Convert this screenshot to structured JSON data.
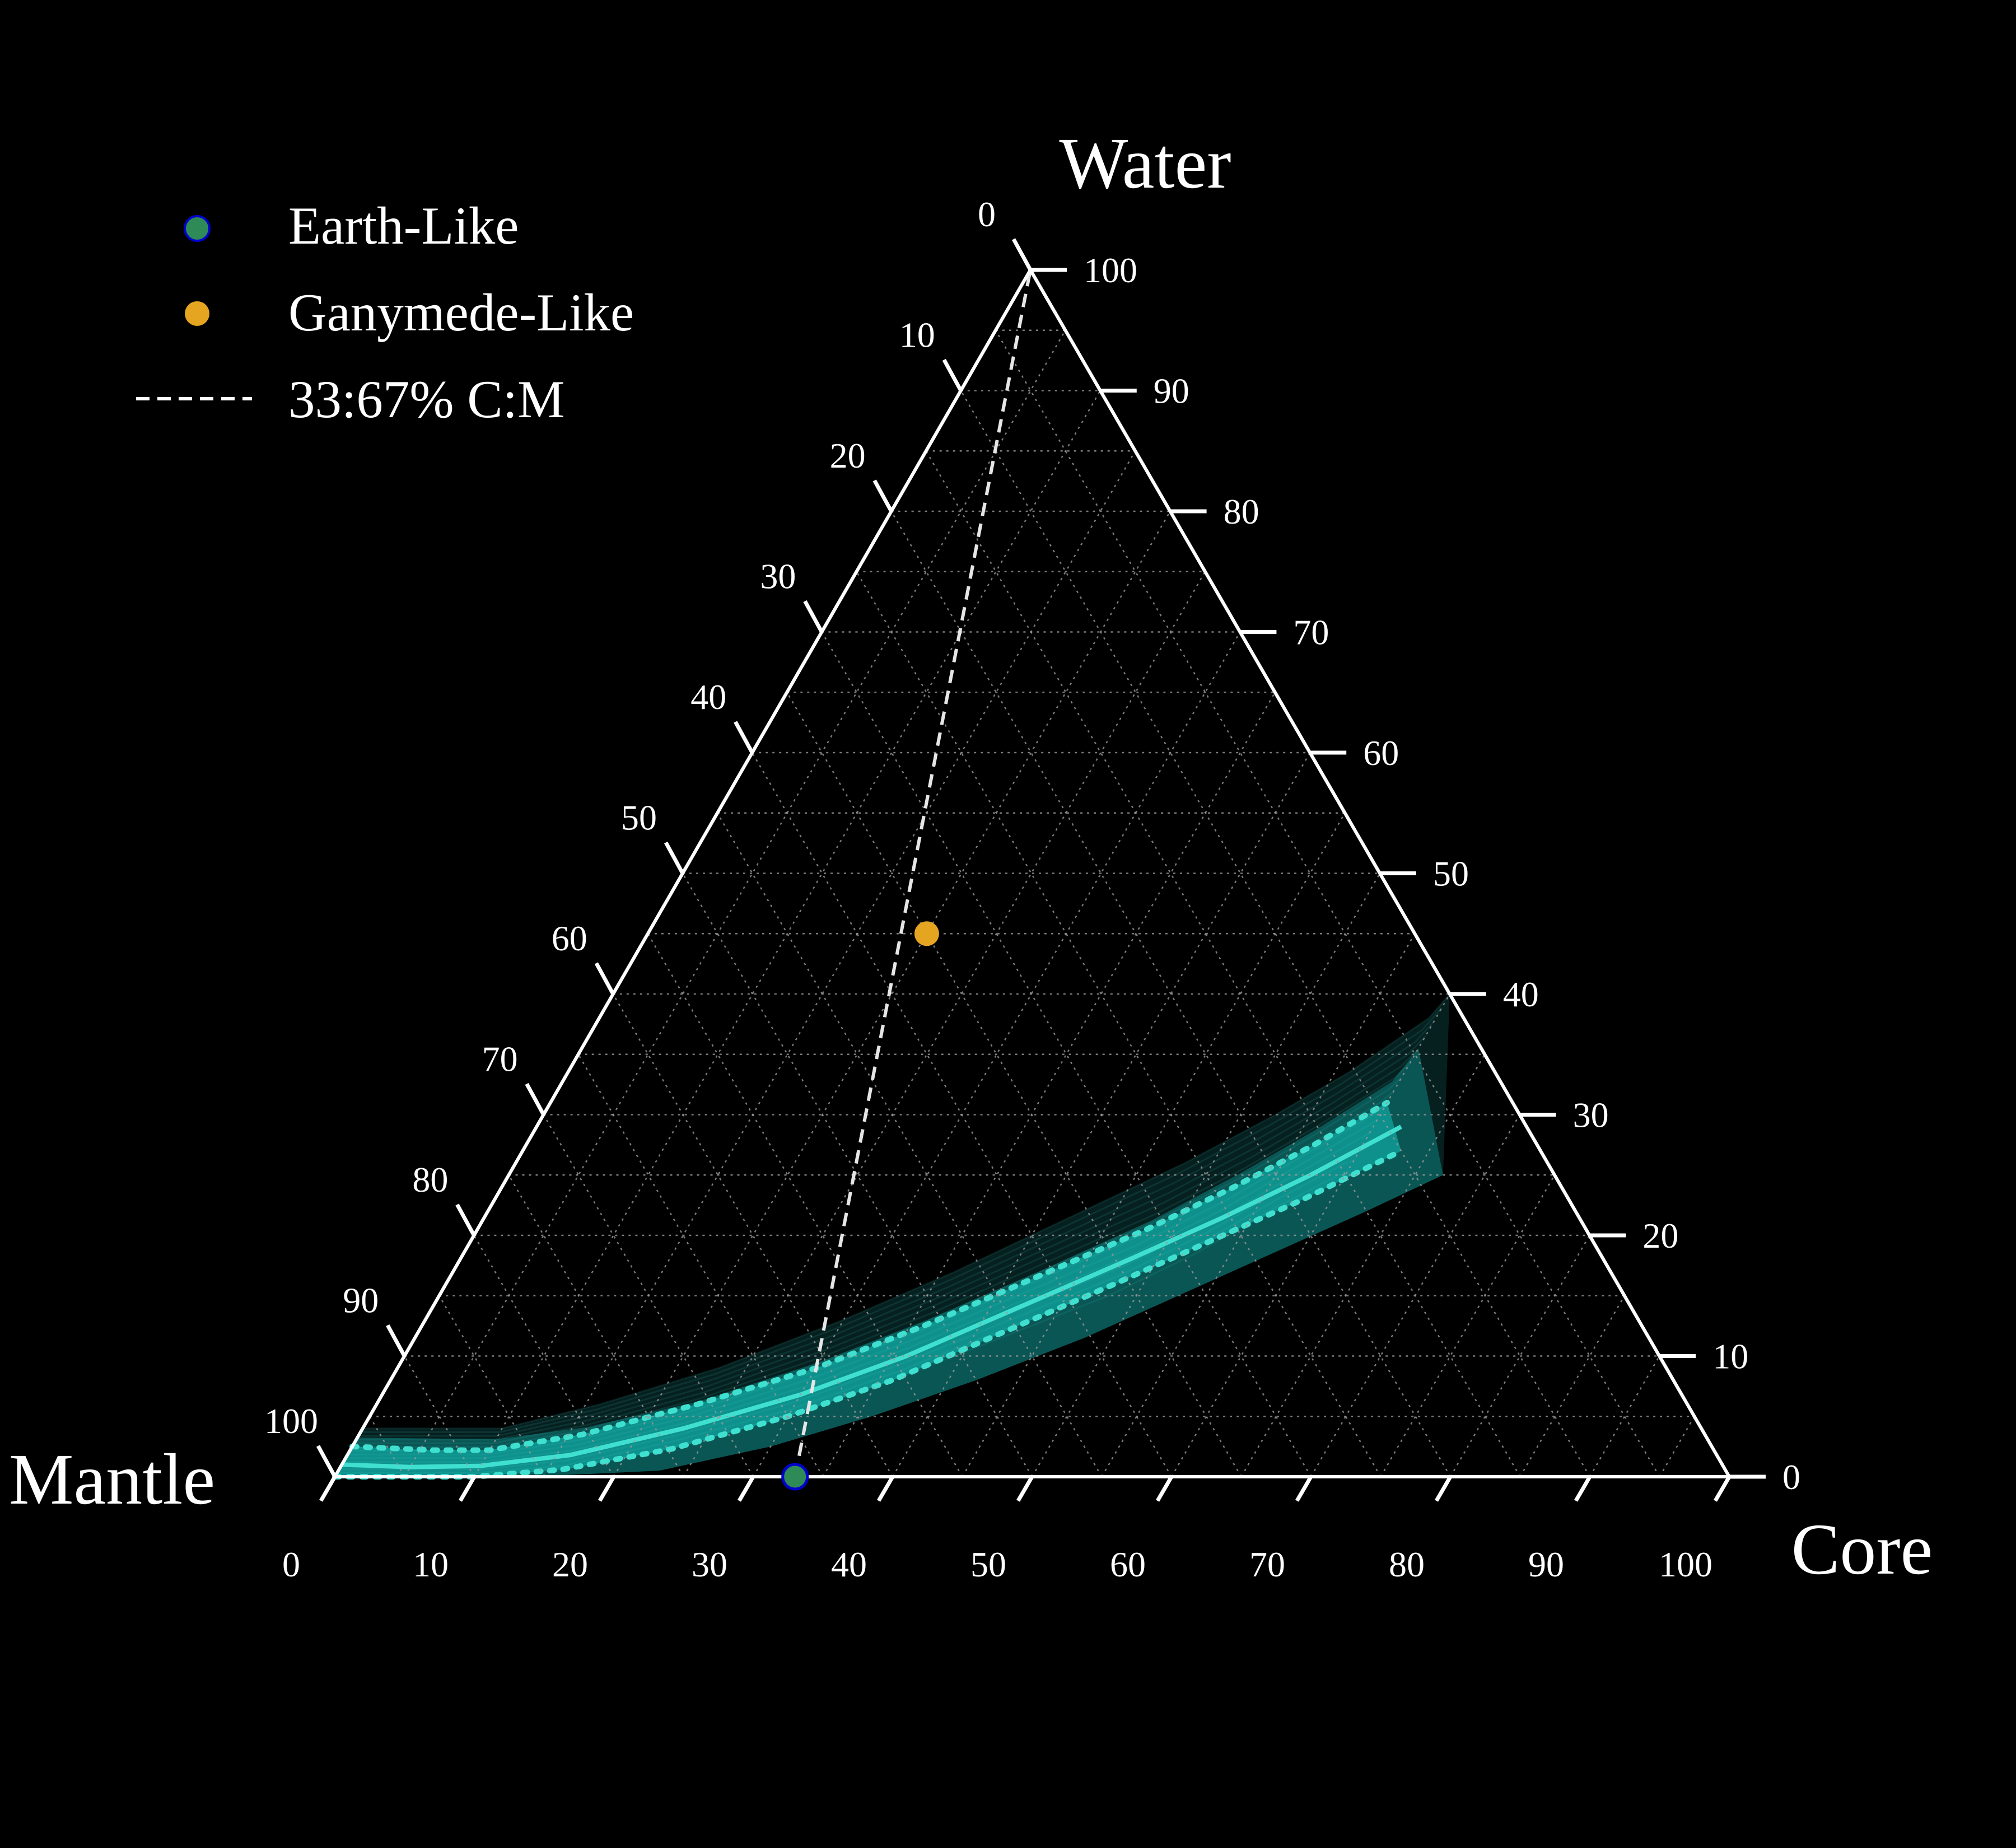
{
  "chart_data": {
    "type": "ternary",
    "axes": {
      "top": "Water",
      "left": "Mantle",
      "right": "Core"
    },
    "ticks": [
      "0",
      "10",
      "20",
      "30",
      "40",
      "50",
      "60",
      "70",
      "80",
      "90",
      "100"
    ],
    "grid": "dotted, every 5%",
    "legend": {
      "position": "top-left",
      "items": [
        {
          "label": "Earth-Like",
          "marker": "circle",
          "color": "#2e8b57",
          "edge": "#0000cd"
        },
        {
          "label": "Ganymede-Like",
          "marker": "circle",
          "color": "#e6a520"
        },
        {
          "label": "33:67% C:M",
          "marker": "dashed-line",
          "color": "#ffffff"
        }
      ]
    },
    "points": [
      {
        "name": "Earth-Like",
        "water": 0,
        "core": 33,
        "mantle": 67
      },
      {
        "name": "Ganymede-Like",
        "water": 45,
        "core": 20,
        "mantle": 35
      }
    ],
    "reference_line": {
      "name": "33:67% C:M",
      "from": {
        "water": 0,
        "core": 33,
        "mantle": 67
      },
      "to": {
        "water": 100,
        "core": 0,
        "mantle": 0
      }
    },
    "band": {
      "color": "#20b2aa",
      "median_color": "#40e0d0",
      "median": [
        {
          "water": 1,
          "core": 0
        },
        {
          "water": 0.8,
          "core": 5
        },
        {
          "water": 0.9,
          "core": 10
        },
        {
          "water": 1.8,
          "core": 16
        },
        {
          "water": 4,
          "core": 23
        },
        {
          "water": 6.8,
          "core": 30
        },
        {
          "water": 10,
          "core": 36
        },
        {
          "water": 14,
          "core": 42
        },
        {
          "water": 18,
          "core": 48
        },
        {
          "water": 21.5,
          "core": 53
        },
        {
          "water": 25,
          "core": 57.5
        },
        {
          "water": 29,
          "core": 62
        }
      ],
      "upper_dotted": [
        {
          "water": 2.5,
          "core": 0
        },
        {
          "water": 2.2,
          "core": 6
        },
        {
          "water": 2.2,
          "core": 10
        },
        {
          "water": 3.5,
          "core": 16
        },
        {
          "water": 6,
          "core": 23
        },
        {
          "water": 9,
          "core": 30
        },
        {
          "water": 12.5,
          "core": 36
        },
        {
          "water": 16.5,
          "core": 42
        },
        {
          "water": 20.5,
          "core": 48
        },
        {
          "water": 24,
          "core": 52.5
        },
        {
          "water": 27.5,
          "core": 56.5
        },
        {
          "water": 31,
          "core": 60
        }
      ],
      "lower_dotted": [
        {
          "water": 0,
          "core": 0
        },
        {
          "water": 0,
          "core": 10
        },
        {
          "water": 0.6,
          "core": 16
        },
        {
          "water": 2.3,
          "core": 23
        },
        {
          "water": 5,
          "core": 30
        },
        {
          "water": 8,
          "core": 36
        },
        {
          "water": 12,
          "core": 42
        },
        {
          "water": 16,
          "core": 48
        },
        {
          "water": 19.5,
          "core": 53
        },
        {
          "water": 23,
          "core": 58
        },
        {
          "water": 27,
          "core": 63
        }
      ],
      "outer_upper": [
        {
          "water": 4,
          "core": 0
        },
        {
          "water": 4,
          "core": 10
        },
        {
          "water": 6,
          "core": 16
        },
        {
          "water": 9,
          "core": 23
        },
        {
          "water": 13,
          "core": 30
        },
        {
          "water": 17,
          "core": 36
        },
        {
          "water": 21.5,
          "core": 42
        },
        {
          "water": 26,
          "core": 48
        },
        {
          "water": 30,
          "core": 52.5
        },
        {
          "water": 33.5,
          "core": 56
        },
        {
          "water": 38,
          "core": 59.5
        },
        {
          "water": 40,
          "core": 60
        }
      ],
      "outer_lower": [
        {
          "water": 0,
          "core": 0
        },
        {
          "water": 0,
          "core": 14
        },
        {
          "water": 0.5,
          "core": 23
        },
        {
          "water": 2.5,
          "core": 30
        },
        {
          "water": 5,
          "core": 36
        },
        {
          "water": 8,
          "core": 42
        },
        {
          "water": 11.5,
          "core": 48
        },
        {
          "water": 15,
          "core": 53
        },
        {
          "water": 18.5,
          "core": 58
        },
        {
          "water": 22,
          "core": 63
        },
        {
          "water": 25,
          "core": 67
        }
      ]
    }
  }
}
